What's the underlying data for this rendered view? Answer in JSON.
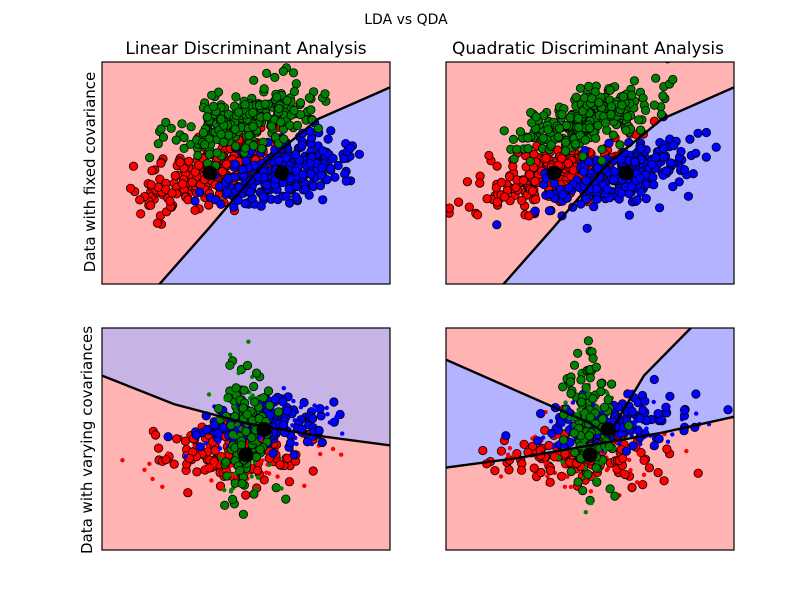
{
  "figure": {
    "suptitle": "LDA vs QDA"
  },
  "chart_data": [
    {
      "type": "scatter",
      "title": "Linear Discriminant Analysis",
      "ylabel": "Data with fixed covariance",
      "xlabel": "",
      "grid": false,
      "xlim": [
        -4,
        4
      ],
      "ylim": [
        -3,
        4
      ],
      "classifier": "linear",
      "background": "red-blue split by boundary",
      "boundary": [
        [
          -2.4,
          -3.0
        ],
        [
          -1.0,
          -1.2
        ],
        [
          0.5,
          0.8
        ],
        [
          2.0,
          2.2
        ],
        [
          4.0,
          3.2
        ]
      ],
      "clusters": [
        {
          "name": "",
          "color": "#ff0000",
          "center": [
            -1.0,
            0.5
          ],
          "spread": [
            0.95,
            0.55
          ],
          "corr": 0.55,
          "n": 260
        },
        {
          "name": "",
          "color": "#0000ff",
          "center": [
            1.0,
            0.5
          ],
          "spread": [
            0.95,
            0.55
          ],
          "corr": 0.55,
          "n": 260
        },
        {
          "name": "",
          "color": "#008000",
          "center": [
            0.0,
            2.2
          ],
          "spread": [
            0.95,
            0.55
          ],
          "corr": 0.55,
          "n": 260
        }
      ],
      "means": [
        [
          -1.0,
          0.5
        ],
        [
          1.0,
          0.5
        ]
      ]
    },
    {
      "type": "scatter",
      "title": "Quadratic Discriminant Analysis",
      "ylabel": "",
      "xlabel": "",
      "grid": false,
      "xlim": [
        -4,
        4
      ],
      "ylim": [
        -3,
        4
      ],
      "classifier": "quadratic",
      "background": "red-blue split by boundary",
      "boundary": [
        [
          -2.4,
          -3.0
        ],
        [
          -1.0,
          -1.2
        ],
        [
          0.5,
          0.8
        ],
        [
          2.0,
          2.2
        ],
        [
          4.0,
          3.2
        ]
      ],
      "clusters": [
        {
          "name": "",
          "color": "#ff0000",
          "center": [
            -1.0,
            0.5
          ],
          "spread": [
            0.95,
            0.55
          ],
          "corr": 0.55,
          "n": 260
        },
        {
          "name": "",
          "color": "#0000ff",
          "center": [
            1.0,
            0.5
          ],
          "spread": [
            0.95,
            0.55
          ],
          "corr": 0.55,
          "n": 260
        },
        {
          "name": "",
          "color": "#008000",
          "center": [
            0.0,
            2.2
          ],
          "spread": [
            0.95,
            0.55
          ],
          "corr": 0.55,
          "n": 260
        }
      ],
      "means": [
        [
          -1.0,
          0.5
        ],
        [
          1.0,
          0.5
        ]
      ]
    },
    {
      "type": "scatter",
      "title": "",
      "ylabel": "Data with varying covariances",
      "xlabel": "",
      "grid": false,
      "xlim": [
        -4,
        4
      ],
      "ylim": [
        -3,
        4
      ],
      "classifier": "linear",
      "background": "purple above boundary, pink below",
      "boundary": [
        [
          -4.0,
          2.5
        ],
        [
          -2.0,
          1.6
        ],
        [
          0.0,
          1.0
        ],
        [
          2.0,
          0.6
        ],
        [
          4.0,
          0.3
        ]
      ],
      "clusters": [
        {
          "name": "",
          "color": "#ff0000",
          "center": [
            -0.3,
            0.0
          ],
          "spread": [
            1.1,
            0.45
          ],
          "corr": 0.0,
          "n": 220
        },
        {
          "name": "",
          "color": "#0000ff",
          "center": [
            0.6,
            1.0
          ],
          "spread": [
            1.0,
            0.45
          ],
          "corr": 0.2,
          "n": 200
        },
        {
          "name": "",
          "color": "#008000",
          "center": [
            0.0,
            0.8
          ],
          "spread": [
            0.35,
            1.05
          ],
          "corr": 0.0,
          "n": 160
        }
      ],
      "means": [
        [
          0.0,
          0.0
        ],
        [
          0.5,
          0.8
        ]
      ]
    },
    {
      "type": "scatter",
      "title": "",
      "ylabel": "",
      "xlabel": "",
      "grid": false,
      "xlim": [
        -4,
        4
      ],
      "ylim": [
        -3,
        4
      ],
      "classifier": "quadratic",
      "background": "blue wedge left and upper-right, pink elsewhere",
      "boundaries": [
        [
          [
            -4.0,
            3.0
          ],
          [
            -2.0,
            2.0
          ],
          [
            0.0,
            1.0
          ],
          [
            0.5,
            0.6
          ]
        ],
        [
          [
            -4.0,
            -0.4
          ],
          [
            -2.0,
            -0.1
          ],
          [
            0.0,
            0.3
          ],
          [
            2.0,
            0.7
          ],
          [
            4.0,
            1.2
          ]
        ],
        [
          [
            0.5,
            0.6
          ],
          [
            1.5,
            2.5
          ],
          [
            2.8,
            4.0
          ]
        ]
      ],
      "clusters": [
        {
          "name": "",
          "color": "#ff0000",
          "center": [
            -0.3,
            0.0
          ],
          "spread": [
            1.1,
            0.45
          ],
          "corr": 0.0,
          "n": 220
        },
        {
          "name": "",
          "color": "#0000ff",
          "center": [
            0.6,
            1.0
          ],
          "spread": [
            1.0,
            0.45
          ],
          "corr": 0.2,
          "n": 200
        },
        {
          "name": "",
          "color": "#008000",
          "center": [
            0.0,
            0.8
          ],
          "spread": [
            0.35,
            1.05
          ],
          "corr": 0.0,
          "n": 160
        }
      ],
      "means": [
        [
          0.0,
          0.0
        ],
        [
          0.5,
          0.8
        ]
      ]
    }
  ]
}
